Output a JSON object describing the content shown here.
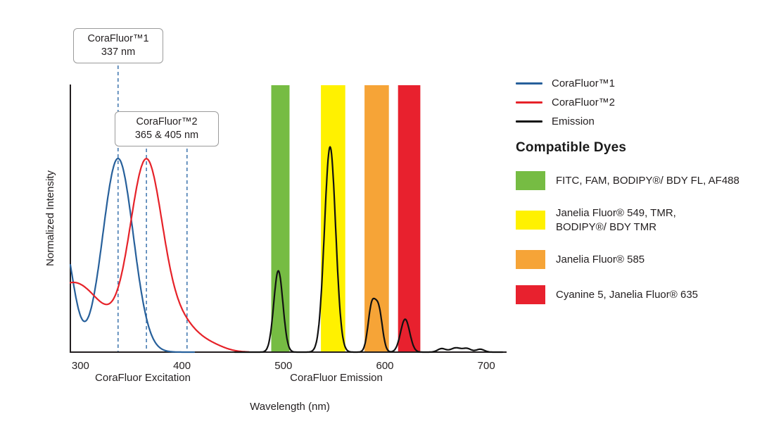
{
  "figure": {
    "y_axis_label": "Normalized Intensity",
    "x_axis_label": "Wavelength (nm)",
    "excitation_section_label": "CoraFluor Excitation",
    "emission_section_label": "CoraFluor Emission"
  },
  "callouts": [
    {
      "title": "CoraFluor™1",
      "value": "337 nm"
    },
    {
      "title": "CoraFluor™2",
      "value": "365 & 405 nm"
    }
  ],
  "legend": {
    "series": [
      {
        "label": "CoraFluor™1",
        "color": "#27609B"
      },
      {
        "label": "CoraFluor™2",
        "color": "#E62229"
      },
      {
        "label": "Emission",
        "color": "#111111"
      }
    ],
    "dyes_heading": "Compatible Dyes",
    "dyes": [
      {
        "label": "FITC, FAM, BODIPY®/ BDY FL, AF488",
        "color": "#76BC43"
      },
      {
        "label": "Janelia Fluor® 549, TMR,\nBODIPY®/ BDY TMR",
        "color": "#FFF100"
      },
      {
        "label": "Janelia Fluor® 585",
        "color": "#F6A437"
      },
      {
        "label": "Cyanine 5, Janelia Fluor® 635",
        "color": "#E8212E"
      }
    ]
  },
  "chart_data": {
    "type": "line",
    "title": "",
    "xlabel": "Wavelength (nm)",
    "ylabel": "Normalized Intensity",
    "x_range": [
      290,
      720
    ],
    "ylim": [
      0,
      1.38
    ],
    "x_ticks": [
      300,
      400,
      500,
      600,
      700
    ],
    "grid": false,
    "legend_position": "right",
    "annotations": {
      "dashed_lines_nm": [
        337,
        365,
        405
      ],
      "color": "#3C74AD",
      "labels": [
        "CoraFluor™1 337 nm",
        "CoraFluor™2 365 & 405 nm"
      ]
    },
    "bands": [
      {
        "name": "fitc-fam-bdyfl-af488",
        "from_nm": 488,
        "to_nm": 506,
        "color": "#76BC43"
      },
      {
        "name": "jf549-tmr-bdytmr",
        "from_nm": 537,
        "to_nm": 561,
        "color": "#FFF100"
      },
      {
        "name": "jf585",
        "from_nm": 580,
        "to_nm": 604,
        "color": "#F6A437"
      },
      {
        "name": "cy5-jf635",
        "from_nm": 613,
        "to_nm": 635,
        "color": "#E8212E"
      }
    ],
    "series": [
      {
        "key": "corafluor1-excitation",
        "name": "CoraFluor™1",
        "color": "#27609B",
        "domain_nm": [
          290,
          412
        ],
        "peaks": [
          {
            "center_nm": 281,
            "sigma_nm": 11,
            "height": 0.62
          },
          {
            "center_nm": 337,
            "sigma_nm": 15,
            "height": 1.0
          }
        ]
      },
      {
        "key": "corafluor2-excitation",
        "name": "CoraFluor™2",
        "color": "#E62229",
        "domain_nm": [
          290,
          466
        ],
        "peaks": [
          {
            "center_nm": 293,
            "sigma_nm": 30,
            "height": 0.36
          },
          {
            "center_nm": 365,
            "sigma_nm": 16,
            "height": 0.97
          },
          {
            "center_nm": 400,
            "sigma_nm": 15,
            "height": 0.13
          },
          {
            "center_nm": 428,
            "sigma_nm": 14,
            "height": 0.035
          }
        ]
      },
      {
        "key": "emission",
        "name": "Emission",
        "color": "#111111",
        "domain_nm": [
          452,
          716
        ],
        "peaks": [
          {
            "center_nm": 495,
            "sigma_nm": 4.5,
            "height": 0.42
          },
          {
            "center_nm": 546,
            "sigma_nm": 5.5,
            "height": 1.06
          },
          {
            "center_nm": 587,
            "sigma_nm": 3.6,
            "height": 0.23
          },
          {
            "center_nm": 594,
            "sigma_nm": 3.6,
            "height": 0.21
          },
          {
            "center_nm": 620,
            "sigma_nm": 4.5,
            "height": 0.17
          },
          {
            "center_nm": 656,
            "sigma_nm": 4,
            "height": 0.018
          },
          {
            "center_nm": 670,
            "sigma_nm": 5,
            "height": 0.022
          },
          {
            "center_nm": 681,
            "sigma_nm": 4,
            "height": 0.018
          },
          {
            "center_nm": 694,
            "sigma_nm": 4,
            "height": 0.015
          }
        ]
      }
    ]
  }
}
